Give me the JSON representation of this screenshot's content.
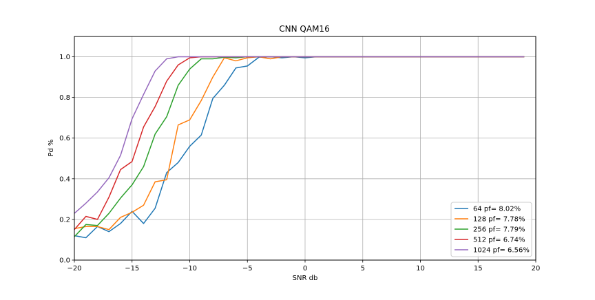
{
  "chart_data": {
    "type": "line",
    "title": "CNN QAM16",
    "xlabel": "SNR db",
    "ylabel": "Pd %",
    "xlim": [
      -20,
      20
    ],
    "ylim": [
      0.0,
      1.1
    ],
    "x_ticks": [
      -20,
      -15,
      -10,
      -5,
      0,
      5,
      10,
      15,
      20
    ],
    "x_tick_labels": [
      "−20",
      "−15",
      "−10",
      "−5",
      "0",
      "5",
      "10",
      "15",
      "20"
    ],
    "y_ticks": [
      0.0,
      0.2,
      0.4,
      0.6,
      0.8,
      1.0
    ],
    "y_tick_labels": [
      "0.0",
      "0.2",
      "0.4",
      "0.6",
      "0.8",
      "1.0"
    ],
    "grid": true,
    "legend_position": "bottom-right",
    "x": [
      -20,
      -19,
      -18,
      -17,
      -16,
      -15,
      -14,
      -13,
      -12,
      -11,
      -10,
      -9,
      -8,
      -7,
      -6,
      -5,
      -4,
      -3,
      -2,
      -1,
      0,
      1,
      2,
      3,
      4,
      5,
      6,
      7,
      8,
      9,
      10,
      11,
      12,
      13,
      14,
      15,
      16,
      17,
      18,
      19
    ],
    "series": [
      {
        "name": "64 pf= 8.02%",
        "color": "#1f77b4",
        "values": [
          0.12,
          0.11,
          0.165,
          0.14,
          0.18,
          0.24,
          0.18,
          0.255,
          0.43,
          0.48,
          0.56,
          0.615,
          0.795,
          0.86,
          0.945,
          0.955,
          0.998,
          1.0,
          0.995,
          1.0,
          0.995,
          1.0,
          1.0,
          1.0,
          1.0,
          1.0,
          1.0,
          1.0,
          1.0,
          1.0,
          1.0,
          1.0,
          1.0,
          1.0,
          1.0,
          1.0,
          1.0,
          1.0,
          1.0,
          1.0
        ]
      },
      {
        "name": "128 pf= 7.78%",
        "color": "#ff7f0e",
        "values": [
          0.155,
          0.165,
          0.165,
          0.15,
          0.21,
          0.235,
          0.27,
          0.385,
          0.395,
          0.665,
          0.69,
          0.785,
          0.9,
          0.995,
          0.98,
          0.995,
          1.0,
          0.99,
          1.0,
          1.0,
          1.0,
          1.0,
          1.0,
          1.0,
          1.0,
          1.0,
          1.0,
          1.0,
          1.0,
          1.0,
          1.0,
          1.0,
          1.0,
          1.0,
          1.0,
          1.0,
          1.0,
          1.0,
          1.0,
          1.0
        ]
      },
      {
        "name": "256 pf= 7.79%",
        "color": "#2ca02c",
        "values": [
          0.115,
          0.175,
          0.17,
          0.23,
          0.305,
          0.37,
          0.46,
          0.62,
          0.705,
          0.86,
          0.94,
          0.99,
          0.99,
          0.998,
          0.995,
          1.0,
          1.0,
          1.0,
          1.0,
          1.0,
          1.0,
          1.0,
          1.0,
          1.0,
          1.0,
          1.0,
          1.0,
          1.0,
          1.0,
          1.0,
          1.0,
          1.0,
          1.0,
          1.0,
          1.0,
          1.0,
          1.0,
          1.0,
          1.0,
          1.0
        ]
      },
      {
        "name": "512 pf= 6.74%",
        "color": "#d62728",
        "values": [
          0.15,
          0.215,
          0.2,
          0.31,
          0.445,
          0.485,
          0.655,
          0.755,
          0.88,
          0.96,
          0.995,
          1.0,
          1.0,
          1.0,
          1.0,
          1.0,
          1.0,
          1.0,
          1.0,
          1.0,
          1.0,
          1.0,
          1.0,
          1.0,
          1.0,
          1.0,
          1.0,
          1.0,
          1.0,
          1.0,
          1.0,
          1.0,
          1.0,
          1.0,
          1.0,
          1.0,
          1.0,
          1.0,
          1.0,
          1.0
        ]
      },
      {
        "name": "1024 pf= 6.56%",
        "color": "#9467bd",
        "values": [
          0.23,
          0.28,
          0.335,
          0.405,
          0.515,
          0.695,
          0.815,
          0.93,
          0.99,
          1.0,
          1.0,
          1.0,
          1.0,
          1.0,
          1.0,
          1.0,
          1.0,
          1.0,
          1.0,
          1.0,
          1.0,
          1.0,
          1.0,
          1.0,
          1.0,
          1.0,
          1.0,
          1.0,
          1.0,
          1.0,
          1.0,
          1.0,
          1.0,
          1.0,
          1.0,
          1.0,
          1.0,
          1.0,
          1.0,
          1.0
        ]
      }
    ]
  }
}
